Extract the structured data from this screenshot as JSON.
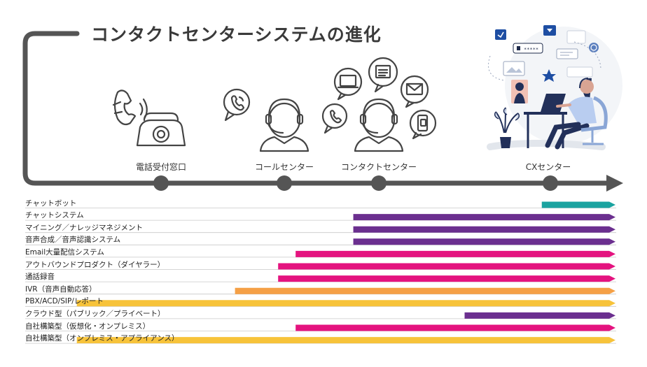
{
  "title": "コンタクトセンターシステムの進化",
  "stages": [
    {
      "label": "電話受付窓口",
      "icon": "rotary-phone-icon"
    },
    {
      "label": "コールセンター",
      "icon": "call-center-agent-icon"
    },
    {
      "label": "コンタクトセンター",
      "icon": "multichannel-agent-icon"
    },
    {
      "label": "CXセンター",
      "icon": "cx-woman-laptop-illustration"
    }
  ],
  "rows": [
    {
      "label": "チャットボット",
      "color": "#1aa3a0",
      "start_stage": 3.95
    },
    {
      "label": "チャットシステム",
      "color": "#6b2f8f",
      "start_stage": 2.73
    },
    {
      "label": "マイニング／ナレッジマネジメント",
      "color": "#6b2f8f",
      "start_stage": 2.73
    },
    {
      "label": "音声合成／音声認識システム",
      "color": "#6b2f8f",
      "start_stage": 2.73
    },
    {
      "label": "Email大量配信システム",
      "color": "#e4137f",
      "start_stage": 2.12
    },
    {
      "label": "アウトバウンドプロダクト（ダイヤラー）",
      "color": "#e4137f",
      "start_stage": 1.95
    },
    {
      "label": "通話録音",
      "color": "#e4137f",
      "start_stage": 1.95
    },
    {
      "label": "IVR（音声自動応答）",
      "color": "#f5a046",
      "start_stage": 1.6
    },
    {
      "label": "PBX/ACD/SIP/レポート",
      "color": "#f7c33a",
      "start_stage": 0.38
    },
    {
      "label": "クラウド型（パブリック／プライベート）",
      "color": "#6b2f8f",
      "start_stage": 3.5
    },
    {
      "label": "自社構築型（仮想化・オンプレミス）",
      "color": "#e4137f",
      "start_stage": 2.12
    },
    {
      "label": "自社構築型（オンプレミス・アプライアンス）",
      "color": "#f7c33a",
      "start_stage": 0.38
    }
  ]
}
